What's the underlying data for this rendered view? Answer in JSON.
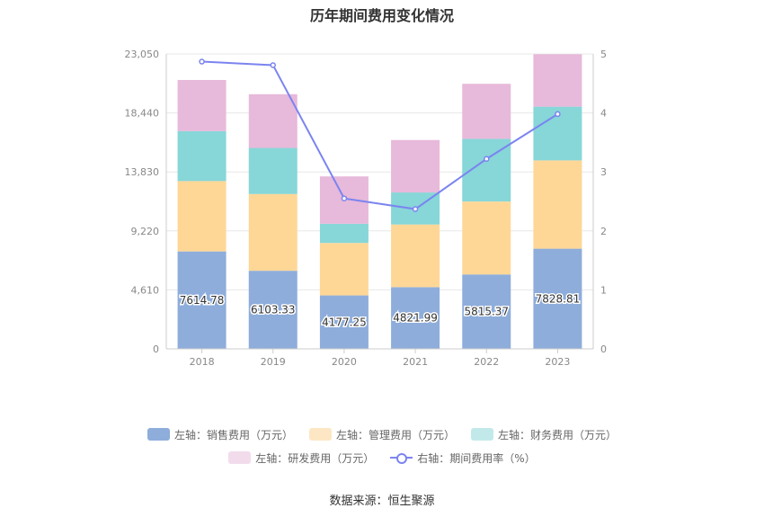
{
  "chart_data": {
    "type": "bar",
    "title": "历年期间费用变化情况",
    "categories": [
      "2018",
      "2019",
      "2020",
      "2021",
      "2022",
      "2023"
    ],
    "left_axis": {
      "ticks": [
        "0",
        "4,610",
        "9,220",
        "13,830",
        "18,440",
        "23,050"
      ],
      "ylim": [
        0,
        23050
      ]
    },
    "right_axis": {
      "ticks": [
        "0",
        "1",
        "2",
        "3",
        "4",
        "5"
      ],
      "ylim": [
        0,
        5
      ]
    },
    "series": [
      {
        "name": "左轴：销售费用（万元）",
        "color": "#8eaddb",
        "values": [
          7614.78,
          6103.33,
          4177.25,
          4821.99,
          5815.37,
          7828.81
        ],
        "data_labels": [
          "7614.78",
          "6103.33",
          "4177.25",
          "4821.99",
          "5815.37",
          "7828.81"
        ]
      },
      {
        "name": "左轴：管理费用（万元）",
        "color": "#fed797",
        "values": [
          5500,
          6000,
          4100,
          4900,
          5700,
          6900
        ]
      },
      {
        "name": "左轴：财务费用（万元）",
        "color": "#87d6d8",
        "values": [
          3900,
          3600,
          1500,
          2500,
          4900,
          4200
        ]
      },
      {
        "name": "左轴：研发费用（万元）",
        "color": "#e7b9da",
        "values": [
          4000,
          4200,
          3700,
          4100,
          4300,
          4100
        ]
      },
      {
        "name": "右轴：期间费用率（%）",
        "type": "line",
        "axis": "right",
        "color": "#7b84f0",
        "values": [
          4.87,
          4.81,
          2.55,
          2.37,
          3.22,
          3.98
        ]
      }
    ],
    "grid": true,
    "legend": "bottom"
  },
  "source": "数据来源：恒生聚源"
}
